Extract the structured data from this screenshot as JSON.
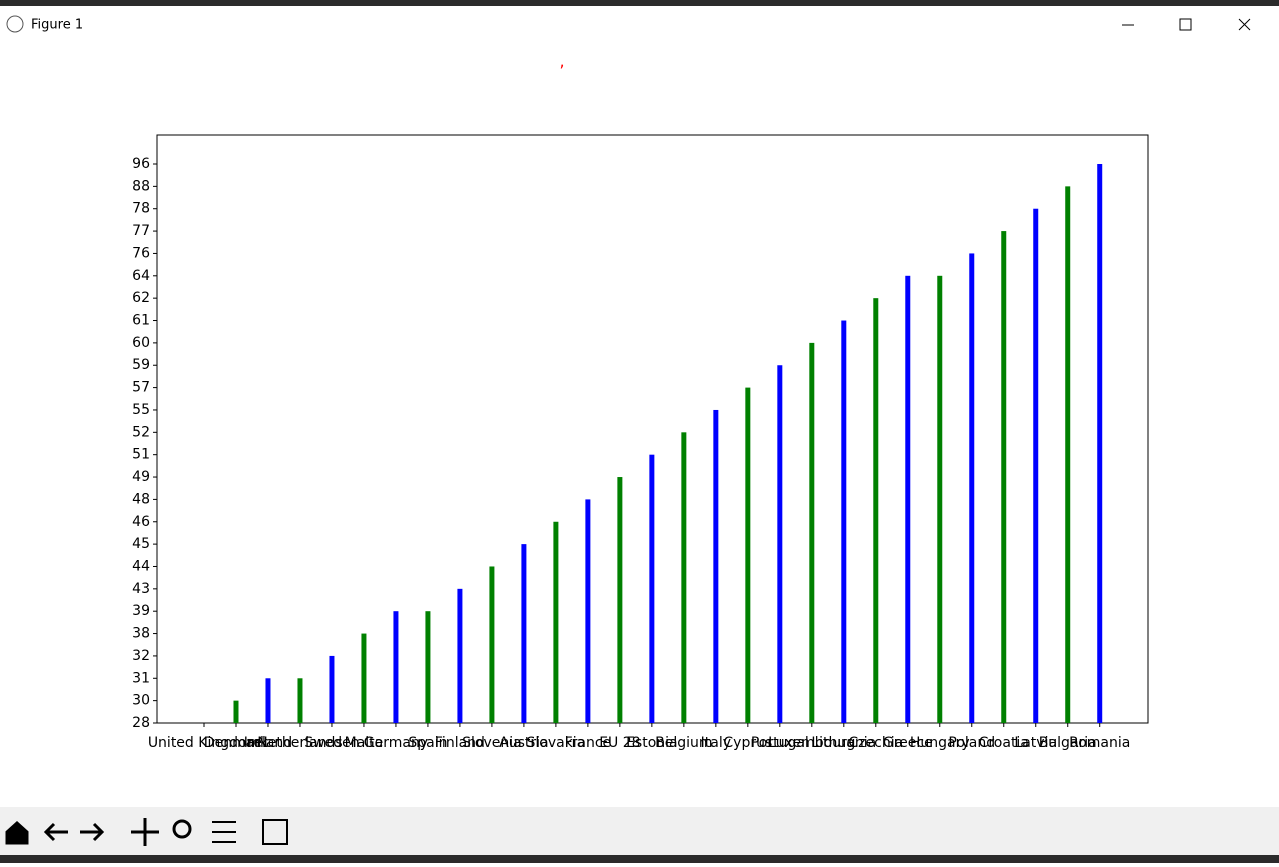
{
  "window_title": "Figure 1",
  "chart_data": {
    "type": "bar",
    "title": ",",
    "categories": [
      "United Kingdom",
      "Denmark",
      "Ireland",
      "Netherlands",
      "Sweden",
      "Malta",
      "Germany",
      "Spain",
      "Finland",
      "Slovenia",
      "Austria",
      "Slovakia",
      "France",
      "EU 28",
      "Estonia",
      "Belgium",
      "Italy",
      "Cyprus",
      "Portugal",
      "Luxembourg",
      "Lithuania",
      "Czechia",
      "Greece",
      "Hungary",
      "Poland",
      "Croatia",
      "Latvia",
      "Bulgaria",
      "Romania"
    ],
    "values": [
      28,
      30,
      31,
      31,
      32,
      38,
      39,
      39,
      43,
      44,
      45,
      46,
      48,
      49,
      51,
      52,
      55,
      57,
      59,
      60,
      61,
      62,
      64,
      64,
      76,
      77,
      78,
      88,
      96
    ],
    "colors": [
      "blue",
      "green"
    ],
    "yticks": [
      28,
      30,
      31,
      32,
      38,
      39,
      43,
      44,
      45,
      46,
      48,
      49,
      51,
      52,
      55,
      57,
      59,
      60,
      61,
      62,
      64,
      76,
      77,
      78,
      88,
      96
    ]
  }
}
